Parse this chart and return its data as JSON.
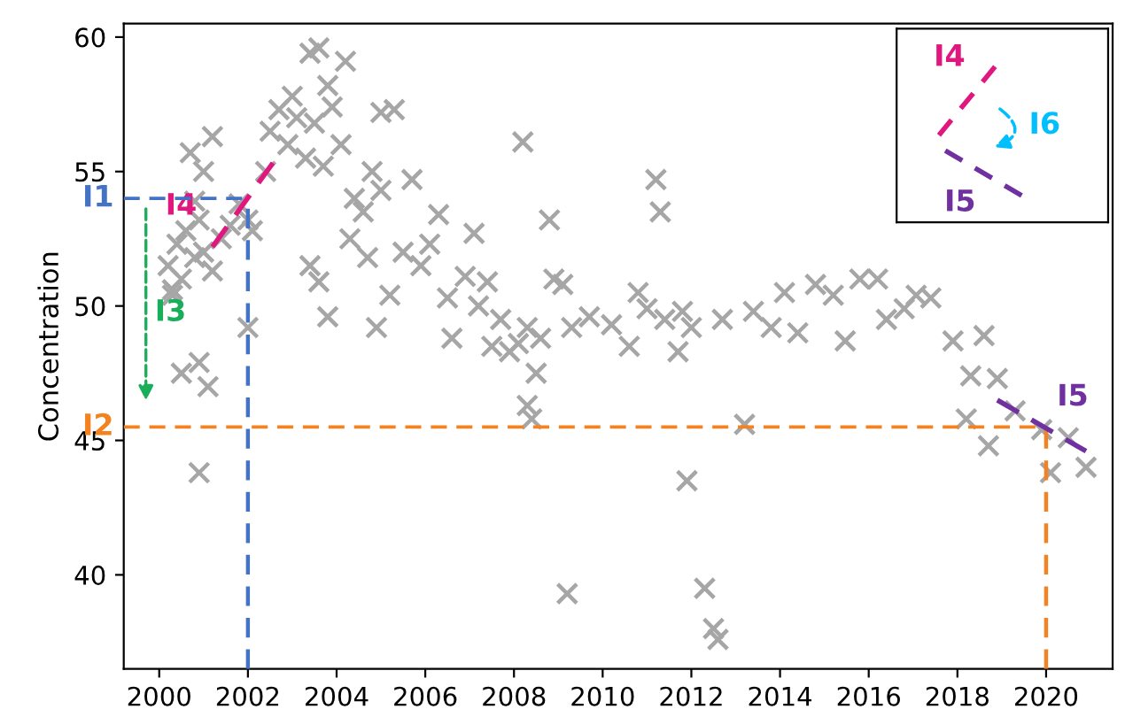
{
  "chart_data": {
    "type": "scatter",
    "ylabel": "Concentration",
    "xlim": [
      1999.2,
      2021.5
    ],
    "ylim": [
      36.5,
      60.5
    ],
    "xticks": [
      2000,
      2002,
      2004,
      2006,
      2008,
      2010,
      2012,
      2014,
      2016,
      2018,
      2020
    ],
    "yticks": [
      40,
      45,
      50,
      55,
      60
    ],
    "grid": false,
    "legend": false,
    "marker": "cross",
    "series": [
      {
        "color": "#a6a6a6",
        "x": [
          2000.2,
          2000.4,
          2000.5,
          2000.6,
          2000.8,
          2000.3,
          2000.9,
          2001.0,
          2001.2,
          2001.4,
          2001.6,
          2001.8,
          2002.0,
          2002.1,
          2000.7,
          2001.2,
          2001.0,
          2000.8,
          2000.5,
          2000.9,
          2001.1,
          2000.9,
          2002.0,
          2000.3,
          2002.5,
          2002.7,
          2002.9,
          2003.1,
          2003.3,
          2003.5,
          2003.7,
          2003.9,
          2004.1,
          2003.0,
          2003.6,
          2003.4,
          2004.2,
          2003.8,
          2002.4,
          2004.4,
          2004.6,
          2004.8,
          2005.0,
          2005.3,
          2005.0,
          2004.3,
          2004.7,
          2004.9,
          2003.4,
          2003.6,
          2003.8,
          2005.2,
          2005.5,
          2005.7,
          2005.9,
          2006.1,
          2006.3,
          2006.5,
          2006.6,
          2006.9,
          2007.1,
          2007.2,
          2007.4,
          2007.5,
          2007.7,
          2007.9,
          2008.1,
          2008.3,
          2008.5,
          2008.6,
          2008.2,
          2008.3,
          2008.4,
          2008.8,
          2008.9,
          2009.1,
          2009.3,
          2009.2,
          2009.7,
          2010.2,
          2010.6,
          2010.8,
          2011.0,
          2011.2,
          2011.3,
          2011.4,
          2011.7,
          2011.8,
          2012.0,
          2011.9,
          2012.3,
          2012.5,
          2012.6,
          2012.7,
          2013.2,
          2013.4,
          2013.8,
          2014.1,
          2014.4,
          2014.8,
          2015.2,
          2015.47,
          2015.8,
          2016.2,
          2016.4,
          2016.8,
          2017.07,
          2017.4,
          2017.9,
          2018.6,
          2018.3,
          2018.9,
          2018.2,
          2018.7,
          2019.3,
          2019.9,
          2020.5,
          2020.1,
          2020.9
        ],
        "values": [
          51.5,
          52.3,
          51.0,
          52.8,
          51.8,
          50.6,
          53.2,
          52.0,
          51.3,
          52.5,
          53.0,
          53.8,
          53.2,
          52.8,
          55.7,
          56.3,
          55.0,
          53.9,
          47.5,
          47.9,
          47.0,
          43.8,
          49.2,
          50.4,
          56.5,
          57.3,
          56.0,
          57.0,
          55.5,
          56.8,
          55.2,
          57.4,
          56.0,
          57.8,
          59.6,
          59.4,
          59.1,
          58.2,
          55.0,
          54.0,
          53.5,
          55.0,
          54.3,
          57.3,
          57.2,
          52.5,
          51.8,
          49.2,
          51.5,
          50.9,
          49.6,
          50.4,
          52.0,
          54.7,
          51.5,
          52.3,
          53.4,
          50.3,
          48.8,
          51.1,
          52.7,
          50.0,
          50.9,
          48.5,
          49.5,
          48.3,
          48.6,
          49.2,
          47.5,
          48.8,
          56.1,
          46.3,
          45.8,
          53.2,
          51.0,
          50.8,
          49.2,
          39.3,
          49.6,
          49.3,
          48.5,
          50.5,
          49.9,
          54.7,
          53.5,
          49.5,
          48.3,
          49.8,
          49.2,
          43.5,
          39.5,
          38.0,
          37.6,
          49.5,
          45.6,
          49.8,
          49.2,
          50.5,
          49.0,
          50.8,
          50.4,
          48.7,
          51.0,
          51.0,
          49.5,
          49.9,
          50.4,
          50.3,
          48.7,
          48.9,
          47.4,
          47.3,
          45.8,
          44.8,
          46.1,
          45.4,
          45.1,
          43.8,
          44.0
        ]
      },
      {
        "type": "line",
        "name": "I4",
        "color": "#e0177e",
        "line_style": "dashed",
        "marker": "none",
        "x": [
          2001.2,
          2002.6
        ],
        "values": [
          52.2,
          55.4
        ]
      },
      {
        "type": "line",
        "name": "I5",
        "color": "#7030a0",
        "line_style": "dashed",
        "marker": "none",
        "x": [
          2018.9,
          2020.9
        ],
        "values": [
          46.5,
          44.6
        ]
      }
    ],
    "ref_lines": [
      {
        "axis": "y",
        "value": 54,
        "label": "I1",
        "color": "#4472c4",
        "line_style": "dashed"
      },
      {
        "axis": "x",
        "value": 2002,
        "color": "#4472c4",
        "line_style": "dashed"
      },
      {
        "axis": "y",
        "value": 45.5,
        "label": "I2",
        "color": "#f58220",
        "line_style": "dashed"
      },
      {
        "axis": "x",
        "value": 2020,
        "color": "#f58220",
        "line_style": "dashed"
      }
    ],
    "annotations": [
      "I3",
      "I4",
      "I6",
      "I5"
    ]
  }
}
